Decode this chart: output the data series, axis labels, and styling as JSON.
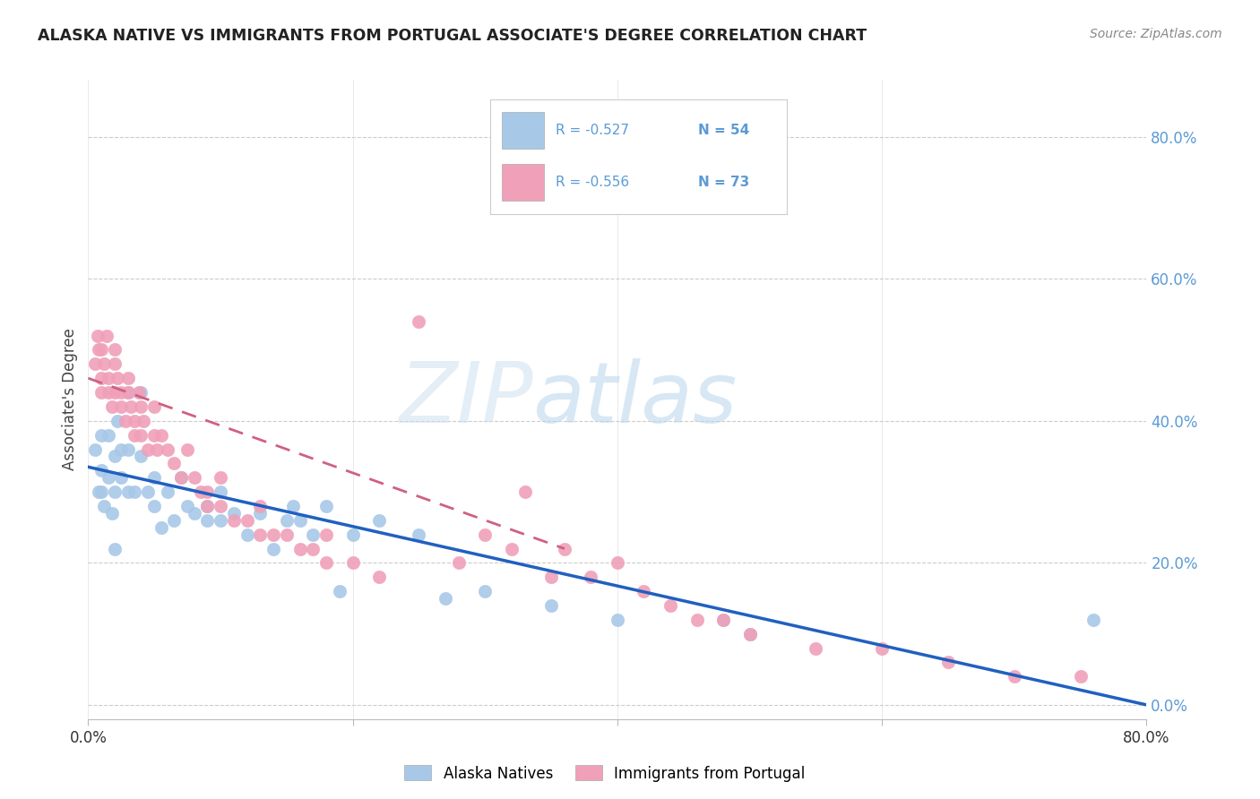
{
  "title": "ALASKA NATIVE VS IMMIGRANTS FROM PORTUGAL ASSOCIATE'S DEGREE CORRELATION CHART",
  "source": "Source: ZipAtlas.com",
  "ylabel": "Associate's Degree",
  "ytick_values": [
    0.0,
    0.2,
    0.4,
    0.6,
    0.8
  ],
  "xlim": [
    0.0,
    0.8
  ],
  "ylim": [
    -0.02,
    0.88
  ],
  "legend_r1": "R = -0.527",
  "legend_n1": "N = 54",
  "legend_r2": "R = -0.556",
  "legend_n2": "N = 73",
  "color_blue": "#a8c8e8",
  "color_pink": "#f0a0b8",
  "color_blue_line": "#2060c0",
  "color_pink_line": "#d06080",
  "watermark_zip": "#c8dff0",
  "watermark_atlas": "#c8dff0",
  "ak_line_x0": 0.0,
  "ak_line_y0": 0.335,
  "ak_line_x1": 0.8,
  "ak_line_y1": 0.0,
  "pt_line_x0": 0.0,
  "pt_line_y0": 0.46,
  "pt_line_x1": 0.36,
  "pt_line_y1": 0.22,
  "alaska_scatter_x": [
    0.005,
    0.008,
    0.01,
    0.01,
    0.01,
    0.012,
    0.015,
    0.015,
    0.018,
    0.02,
    0.02,
    0.02,
    0.022,
    0.025,
    0.025,
    0.03,
    0.03,
    0.03,
    0.035,
    0.04,
    0.04,
    0.045,
    0.05,
    0.05,
    0.055,
    0.06,
    0.065,
    0.07,
    0.075,
    0.08,
    0.09,
    0.09,
    0.1,
    0.1,
    0.11,
    0.12,
    0.13,
    0.14,
    0.15,
    0.155,
    0.16,
    0.17,
    0.18,
    0.19,
    0.2,
    0.22,
    0.25,
    0.27,
    0.3,
    0.35,
    0.4,
    0.48,
    0.5,
    0.76
  ],
  "alaska_scatter_y": [
    0.36,
    0.3,
    0.38,
    0.3,
    0.33,
    0.28,
    0.32,
    0.38,
    0.27,
    0.35,
    0.3,
    0.22,
    0.4,
    0.32,
    0.36,
    0.44,
    0.3,
    0.36,
    0.3,
    0.35,
    0.44,
    0.3,
    0.32,
    0.28,
    0.25,
    0.3,
    0.26,
    0.32,
    0.28,
    0.27,
    0.28,
    0.26,
    0.26,
    0.3,
    0.27,
    0.24,
    0.27,
    0.22,
    0.26,
    0.28,
    0.26,
    0.24,
    0.28,
    0.16,
    0.24,
    0.26,
    0.24,
    0.15,
    0.16,
    0.14,
    0.12,
    0.12,
    0.1,
    0.12
  ],
  "portugal_scatter_x": [
    0.005,
    0.007,
    0.008,
    0.01,
    0.01,
    0.01,
    0.012,
    0.014,
    0.015,
    0.015,
    0.018,
    0.02,
    0.02,
    0.02,
    0.022,
    0.025,
    0.025,
    0.028,
    0.03,
    0.03,
    0.032,
    0.035,
    0.035,
    0.038,
    0.04,
    0.04,
    0.042,
    0.045,
    0.05,
    0.05,
    0.052,
    0.055,
    0.06,
    0.065,
    0.07,
    0.075,
    0.08,
    0.085,
    0.09,
    0.09,
    0.1,
    0.1,
    0.11,
    0.12,
    0.13,
    0.13,
    0.14,
    0.15,
    0.16,
    0.17,
    0.18,
    0.18,
    0.2,
    0.22,
    0.25,
    0.28,
    0.3,
    0.32,
    0.33,
    0.35,
    0.36,
    0.38,
    0.4,
    0.42,
    0.44,
    0.46,
    0.48,
    0.5,
    0.55,
    0.6,
    0.65,
    0.7,
    0.75
  ],
  "portugal_scatter_y": [
    0.48,
    0.52,
    0.5,
    0.44,
    0.5,
    0.46,
    0.48,
    0.52,
    0.44,
    0.46,
    0.42,
    0.48,
    0.44,
    0.5,
    0.46,
    0.42,
    0.44,
    0.4,
    0.44,
    0.46,
    0.42,
    0.38,
    0.4,
    0.44,
    0.42,
    0.38,
    0.4,
    0.36,
    0.38,
    0.42,
    0.36,
    0.38,
    0.36,
    0.34,
    0.32,
    0.36,
    0.32,
    0.3,
    0.28,
    0.3,
    0.28,
    0.32,
    0.26,
    0.26,
    0.24,
    0.28,
    0.24,
    0.24,
    0.22,
    0.22,
    0.2,
    0.24,
    0.2,
    0.18,
    0.54,
    0.2,
    0.24,
    0.22,
    0.3,
    0.18,
    0.22,
    0.18,
    0.2,
    0.16,
    0.14,
    0.12,
    0.12,
    0.1,
    0.08,
    0.08,
    0.06,
    0.04,
    0.04
  ]
}
